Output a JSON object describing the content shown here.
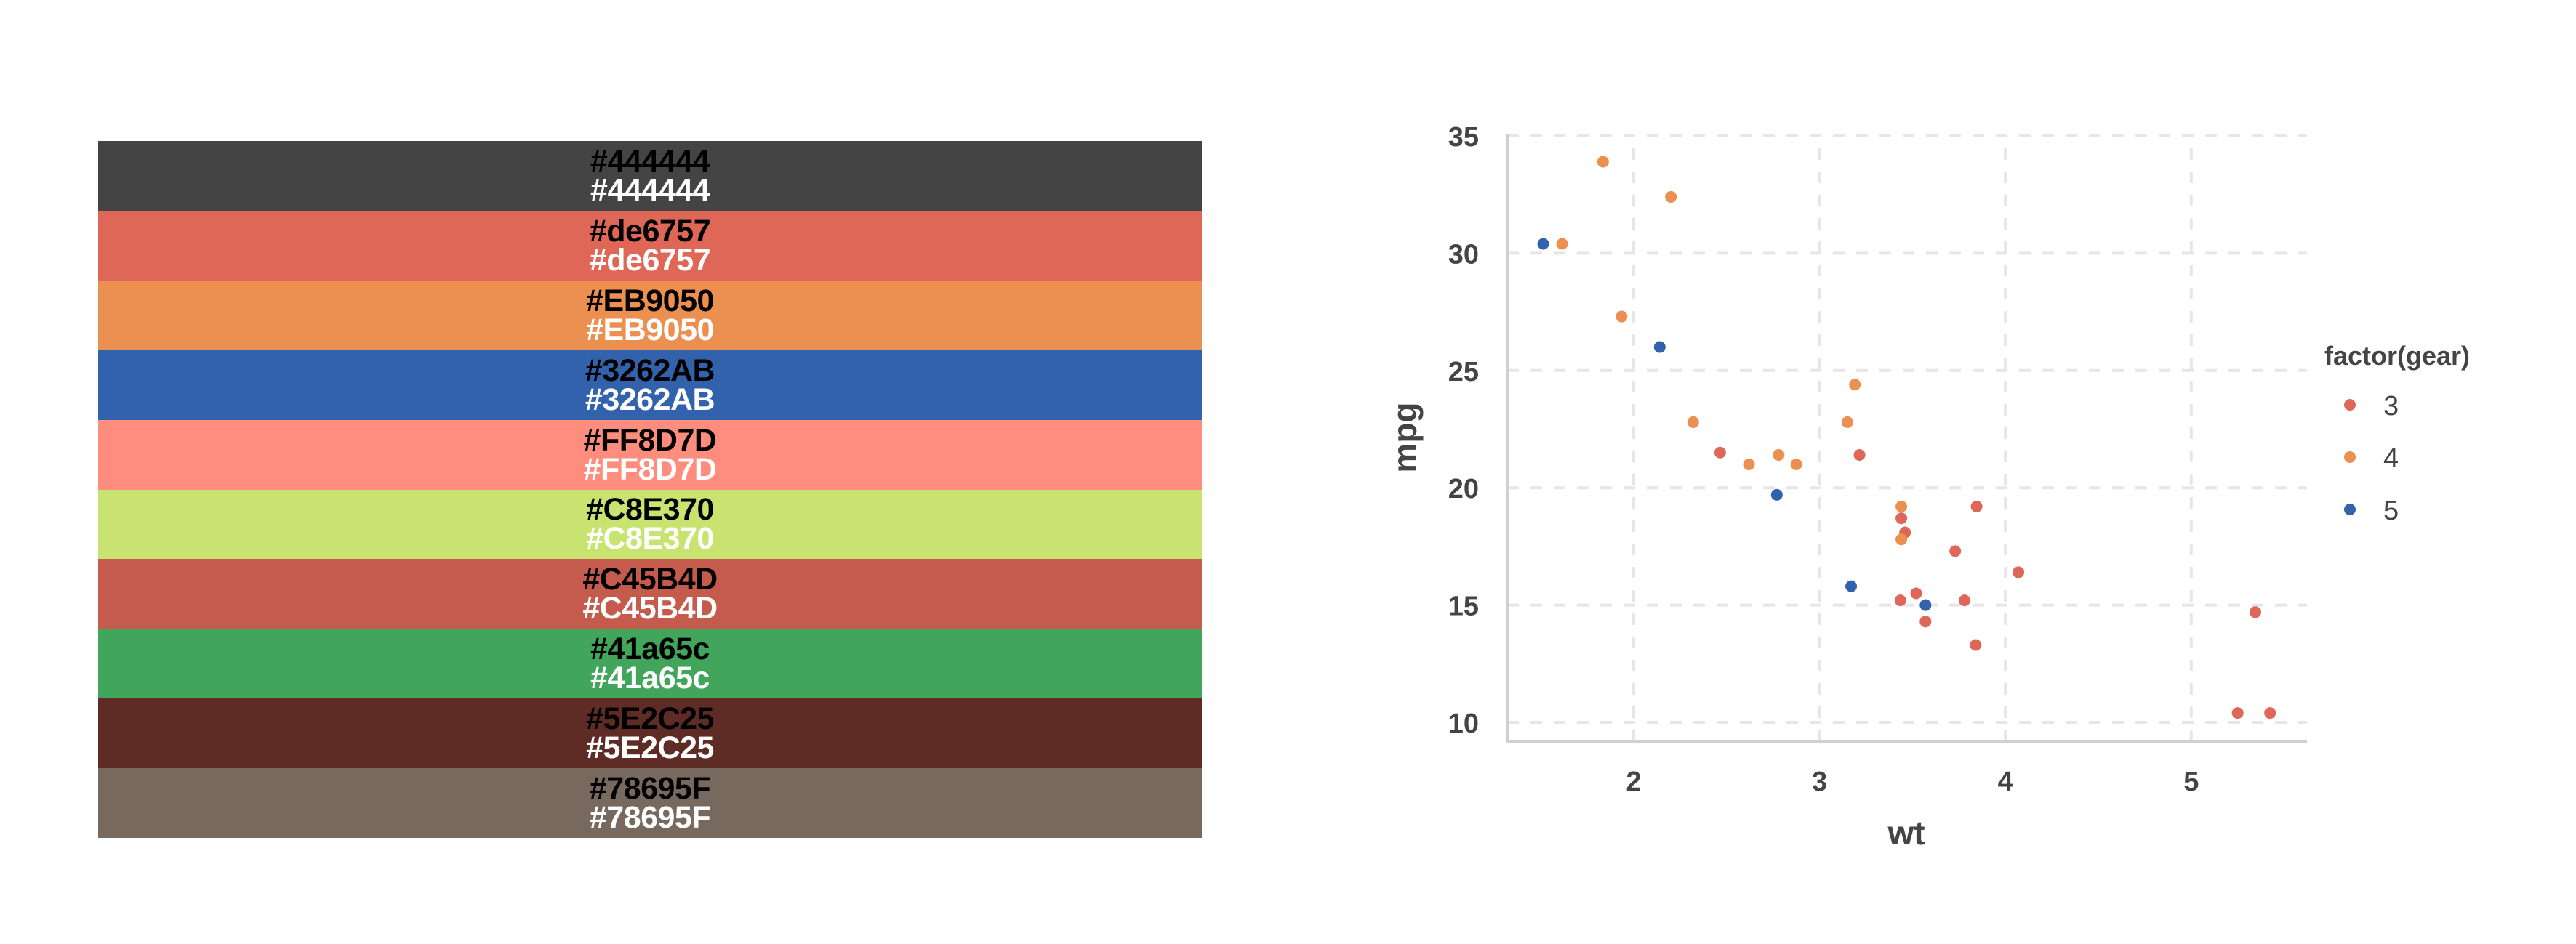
{
  "swatches": [
    {
      "label": "#444444",
      "color": "#444444"
    },
    {
      "label": "#de6757",
      "color": "#de6757"
    },
    {
      "label": "#EB9050",
      "color": "#EB9050"
    },
    {
      "label": "#3262AB",
      "color": "#3262AB"
    },
    {
      "label": "#FF8D7D",
      "color": "#FF8D7D"
    },
    {
      "label": "#C8E370",
      "color": "#C8E370"
    },
    {
      "label": "#C45B4D",
      "color": "#C45B4D"
    },
    {
      "label": "#41a65c",
      "color": "#41a65c"
    },
    {
      "label": "#5E2C25",
      "color": "#5E2C25"
    },
    {
      "label": "#78695F",
      "color": "#78695F"
    }
  ],
  "chart_data": {
    "type": "scatter",
    "title": "",
    "xlabel": "wt",
    "ylabel": "mpg",
    "xlim": [
      1.317,
      5.62
    ],
    "ylim": [
      9.2,
      35.1
    ],
    "x_ticks": [
      2,
      3,
      4,
      5
    ],
    "y_ticks": [
      10,
      15,
      20,
      25,
      30,
      35
    ],
    "grid": true,
    "legend": {
      "title": "factor(gear)",
      "position": "right",
      "entries": [
        {
          "label": "3",
          "color": "#de6757"
        },
        {
          "label": "4",
          "color": "#EB9050"
        },
        {
          "label": "5",
          "color": "#3262AB"
        }
      ]
    },
    "series": [
      {
        "name": "3",
        "color": "#de6757",
        "points": [
          [
            3.215,
            21.4
          ],
          [
            3.44,
            18.7
          ],
          [
            3.46,
            18.1
          ],
          [
            3.57,
            14.3
          ],
          [
            4.07,
            16.4
          ],
          [
            3.73,
            17.3
          ],
          [
            3.78,
            15.2
          ],
          [
            5.25,
            10.4
          ],
          [
            5.424,
            10.4
          ],
          [
            5.345,
            14.7
          ],
          [
            2.465,
            21.5
          ],
          [
            3.52,
            15.5
          ],
          [
            3.435,
            15.2
          ],
          [
            3.84,
            13.3
          ],
          [
            3.845,
            19.2
          ]
        ]
      },
      {
        "name": "4",
        "color": "#EB9050",
        "points": [
          [
            2.62,
            21.0
          ],
          [
            2.875,
            21.0
          ],
          [
            2.32,
            22.8
          ],
          [
            3.19,
            24.4
          ],
          [
            3.15,
            22.8
          ],
          [
            3.44,
            19.2
          ],
          [
            3.44,
            17.8
          ],
          [
            2.2,
            32.4
          ],
          [
            1.615,
            30.4
          ],
          [
            1.835,
            33.9
          ],
          [
            1.935,
            27.3
          ],
          [
            2.78,
            21.4
          ]
        ]
      },
      {
        "name": "5",
        "color": "#3262AB",
        "points": [
          [
            2.14,
            26.0
          ],
          [
            1.513,
            30.4
          ],
          [
            3.17,
            15.8
          ],
          [
            2.77,
            19.7
          ],
          [
            3.57,
            15.0
          ]
        ]
      }
    ]
  }
}
